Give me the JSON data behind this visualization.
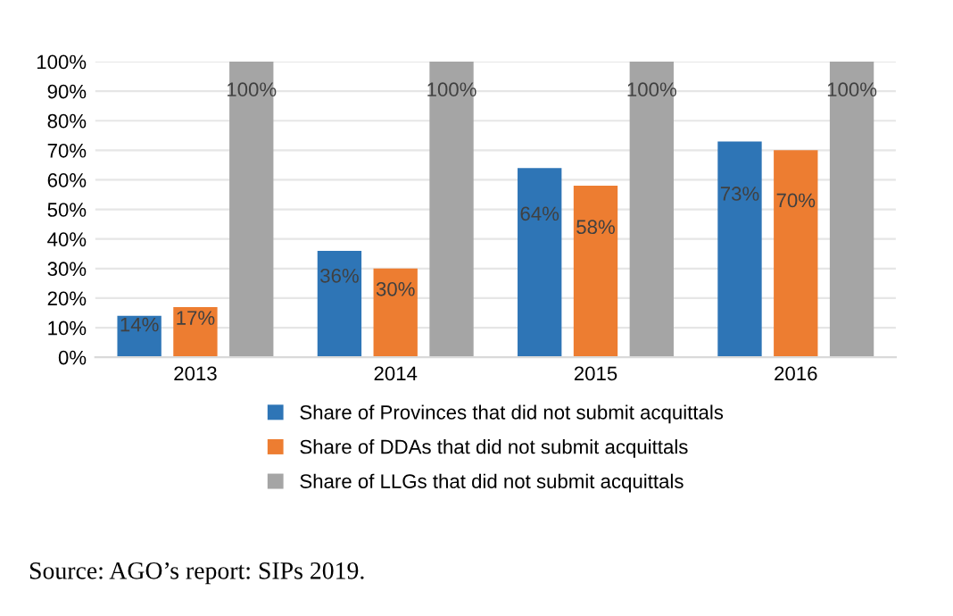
{
  "chart_data": {
    "type": "bar",
    "categories": [
      "2013",
      "2014",
      "2015",
      "2016"
    ],
    "series": [
      {
        "name": "Share of Provinces that did not submit acquittals",
        "color": "#2e75b6",
        "values": [
          14,
          36,
          64,
          73
        ],
        "value_labels": [
          "14%",
          "36%",
          "64%",
          "73%"
        ]
      },
      {
        "name": "Share of DDAs that did not submit acquittals",
        "color": "#ed7d31",
        "values": [
          17,
          30,
          58,
          70
        ],
        "value_labels": [
          "17%",
          "30%",
          "58%",
          "70%"
        ]
      },
      {
        "name": "Share of LLGs that did not submit acquittals",
        "color": "#a5a5a5",
        "values": [
          100,
          100,
          100,
          100
        ],
        "value_labels": [
          "100%",
          "100%",
          "100%",
          "100%"
        ]
      }
    ],
    "ylim": [
      0,
      100
    ],
    "yticks": [
      {
        "value": 0,
        "label": "0%"
      },
      {
        "value": 10,
        "label": "10%"
      },
      {
        "value": 20,
        "label": "20%"
      },
      {
        "value": 30,
        "label": "30%"
      },
      {
        "value": 40,
        "label": "40%"
      },
      {
        "value": 50,
        "label": "50%"
      },
      {
        "value": 60,
        "label": "60%"
      },
      {
        "value": 70,
        "label": "70%"
      },
      {
        "value": 80,
        "label": "80%"
      },
      {
        "value": 90,
        "label": "90%"
      },
      {
        "value": 100,
        "label": "100%"
      }
    ],
    "grid": "y",
    "legend": "bottom",
    "annotations": [
      "Source: AGO’s report: SIPs 2019."
    ]
  }
}
